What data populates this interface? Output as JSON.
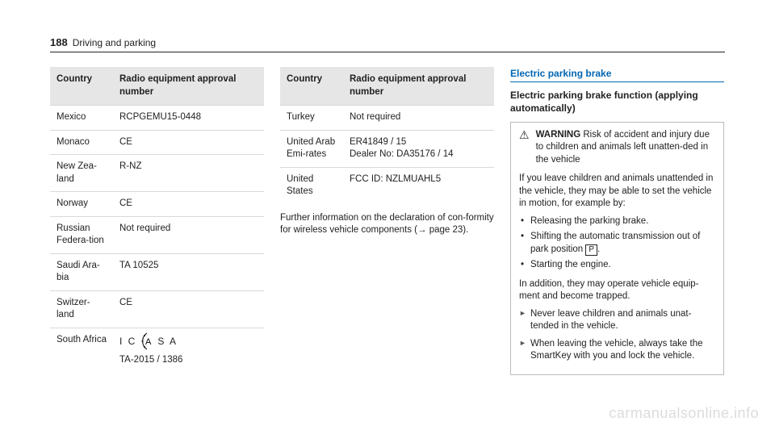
{
  "header": {
    "page_number": "188",
    "section": "Driving and parking"
  },
  "table_headers": {
    "country": "Country",
    "approval": "Radio equipment approval number"
  },
  "table1_rows": [
    {
      "country": "Mexico",
      "approval": "RCPGEMU15-0448"
    },
    {
      "country": "Monaco",
      "approval": "CE"
    },
    {
      "country": "New Zea-land",
      "approval": "R-NZ"
    },
    {
      "country": "Norway",
      "approval": "CE"
    },
    {
      "country": "Russian Federa-tion",
      "approval": "Not required"
    },
    {
      "country": "Saudi Ara-bia",
      "approval": "TA 10525"
    },
    {
      "country": "Switzer-land",
      "approval": "CE"
    },
    {
      "country": "South Africa",
      "approval": "__LOGO__",
      "logo_sub": "TA-2015 / 1386"
    }
  ],
  "table2_rows": [
    {
      "country": "Turkey",
      "approval": "Not required"
    },
    {
      "country": "United Arab Emi-rates",
      "approval": "ER41849 / 15\nDealer No: DA35176 / 14"
    },
    {
      "country": "United States",
      "approval": "FCC ID: NZLMUAHL5"
    }
  ],
  "further_info": "Further information on the declaration of con-formity for wireless vehicle components (→ page 23).",
  "col3": {
    "heading": "Electric parking brake",
    "sub": "Electric parking brake function (applying automatically)",
    "warning_label": "WARNING",
    "warning_text": " Risk of accident and injury due to children and animals left unatten-ded in the vehicle",
    "intro": "If you leave children and animals unattended in the vehicle, they may be able to set the vehicle in motion, for example by:",
    "bullets": [
      "Releasing the parking brake.",
      "Shifting the automatic transmission out of park position __P__.",
      "Starting the engine."
    ],
    "outro": "In addition, they may operate vehicle equip-ment and become trapped.",
    "arrows": [
      "Never leave children and animals unat-tended in the vehicle.",
      "When leaving the vehicle, always take the SmartKey with you and lock the vehicle."
    ]
  },
  "watermark": "carmanualsonline.info",
  "colors": {
    "heading_blue": "#0066b3",
    "border_gray": "#d9d9d9",
    "header_bg": "#e6e6e6"
  }
}
